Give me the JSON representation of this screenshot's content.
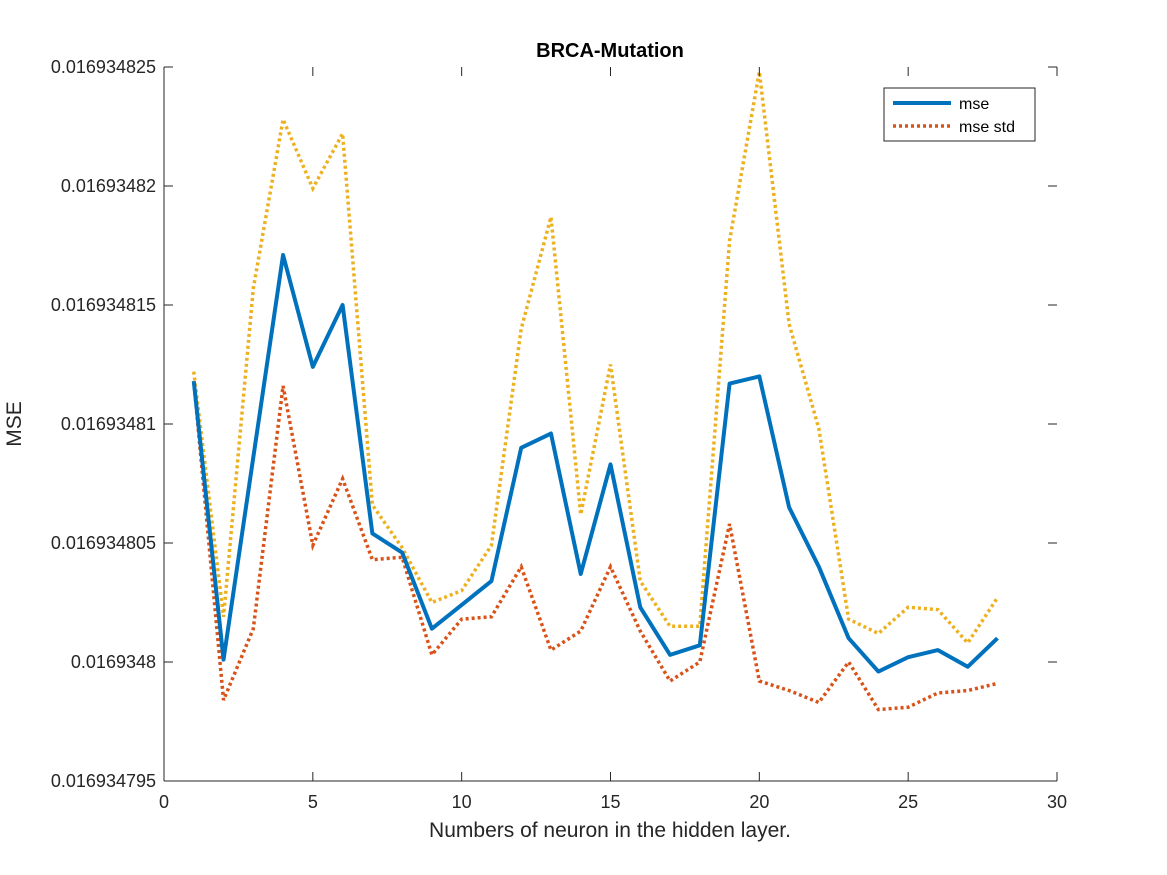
{
  "chart_data": {
    "type": "line",
    "title": "BRCA-Mutation",
    "xlabel": "Numbers of neuron in the hidden layer.",
    "ylabel": "MSE",
    "xlim": [
      0,
      30
    ],
    "ylim": [
      0.016934795,
      0.016934825
    ],
    "xticks": [
      0,
      5,
      10,
      15,
      20,
      25,
      30
    ],
    "xtick_labels": [
      "0",
      "5",
      "10",
      "15",
      "20",
      "25",
      "30"
    ],
    "yticks": [
      0.016934795,
      0.0169348,
      0.016934805,
      0.01693481,
      0.016934815,
      0.01693482,
      0.016934825
    ],
    "ytick_labels": [
      "0.016934795",
      "0.0169348",
      "0.016934805",
      "0.01693481",
      "0.016934815",
      "0.01693482",
      "0.016934825"
    ],
    "grid": false,
    "legend_position": "top-right",
    "x": [
      1,
      2,
      3,
      4,
      5,
      6,
      7,
      8,
      9,
      10,
      11,
      12,
      13,
      14,
      15,
      16,
      17,
      18,
      19,
      20,
      21,
      22,
      23,
      24,
      25,
      26,
      27,
      28
    ],
    "series": [
      {
        "name": "mse",
        "color": "#0072BD",
        "style": "solid",
        "in_legend": true,
        "values": [
          0.0169348118,
          0.0169348001,
          0.0169348086,
          0.0169348171,
          0.0169348124,
          0.016934815,
          0.0169348054,
          0.0169348046,
          0.0169348014,
          0.0169348024,
          0.0169348034,
          0.016934809,
          0.0169348096,
          0.0169348037,
          0.0169348083,
          0.0169348023,
          0.0169348003,
          0.0169348007,
          0.0169348117,
          0.016934812,
          0.0169348065,
          0.016934804,
          0.016934801,
          0.0169347996,
          0.0169348002,
          0.0169348005,
          0.0169347998,
          0.016934801
        ]
      },
      {
        "name": "mse std",
        "color": "#D95319",
        "style": "dotted",
        "in_legend": true,
        "values": [
          0.0169348118,
          0.0169347984,
          0.0169348014,
          0.0169348116,
          0.0169348049,
          0.0169348077,
          0.0169348043,
          0.0169348044,
          0.0169348003,
          0.0169348018,
          0.0169348019,
          0.016934804,
          0.0169348005,
          0.0169348013,
          0.016934804,
          0.0169348013,
          0.0169347992,
          0.0169348,
          0.0169348058,
          0.0169347992,
          0.0169347988,
          0.0169347983,
          0.0169348,
          0.016934798,
          0.0169347981,
          0.0169347987,
          0.0169347988,
          0.0169347991
        ]
      },
      {
        "color": "#EDB120",
        "style": "dotted",
        "in_legend": false,
        "values": [
          0.0169348122,
          0.0169348019,
          0.0169348157,
          0.0169348228,
          0.0169348199,
          0.0169348222,
          0.0169348066,
          0.0169348048,
          0.0169348025,
          0.016934803,
          0.0169348049,
          0.016934814,
          0.0169348187,
          0.0169348062,
          0.0169348125,
          0.0169348034,
          0.0169348015,
          0.0169348015,
          0.0169348177,
          0.0169348248,
          0.0169348142,
          0.0169348098,
          0.0169348018,
          0.0169348012,
          0.0169348023,
          0.0169348022,
          0.0169348008,
          0.0169348027
        ]
      }
    ]
  }
}
